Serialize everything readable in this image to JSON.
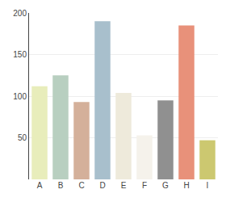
{
  "chart_data": {
    "type": "bar",
    "categories": [
      "A",
      "B",
      "C",
      "D",
      "E",
      "F",
      "G",
      "H",
      "I"
    ],
    "values": [
      112,
      125,
      93,
      190,
      104,
      53,
      95,
      185,
      47
    ],
    "colors": [
      "#e8edbb",
      "#b8cfc0",
      "#d4b09a",
      "#a8bfcc",
      "#eeeadb",
      "#f5f2eb",
      "#909090",
      "#e8917a",
      "#ccc870"
    ],
    "ylim": [
      0,
      200
    ],
    "yticks": [
      50,
      100,
      150,
      200
    ],
    "grid": true
  }
}
